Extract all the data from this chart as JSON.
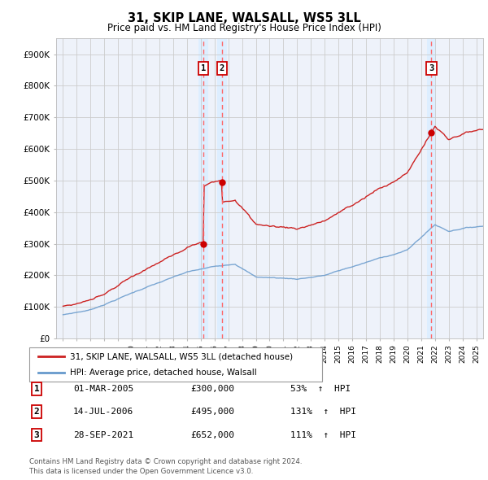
{
  "title": "31, SKIP LANE, WALSALL, WS5 3LL",
  "subtitle": "Price paid vs. HM Land Registry's House Price Index (HPI)",
  "legend_line1": "31, SKIP LANE, WALSALL, WS5 3LL (detached house)",
  "legend_line2": "HPI: Average price, detached house, Walsall",
  "footer1": "Contains HM Land Registry data © Crown copyright and database right 2024.",
  "footer2": "This data is licensed under the Open Government Licence v3.0.",
  "transactions": [
    {
      "num": 1,
      "date": "01-MAR-2005",
      "price": 300000,
      "pct": "53%",
      "dir": "↑"
    },
    {
      "num": 2,
      "date": "14-JUL-2006",
      "price": 495000,
      "pct": "131%",
      "dir": "↑"
    },
    {
      "num": 3,
      "date": "28-SEP-2021",
      "price": 652000,
      "pct": "111%",
      "dir": "↑"
    }
  ],
  "trans_dates_decimal": [
    2005.17,
    2006.54,
    2021.75
  ],
  "trans_prices": [
    300000,
    495000,
    652000
  ],
  "xlim_left": 1994.5,
  "xlim_right": 2025.5,
  "ylim_bottom": 0,
  "ylim_top": 950000,
  "yticks": [
    0,
    100000,
    200000,
    300000,
    400000,
    500000,
    600000,
    700000,
    800000,
    900000
  ],
  "ytick_labels": [
    "£0",
    "£100K",
    "£200K",
    "£300K",
    "£400K",
    "£500K",
    "£600K",
    "£700K",
    "£800K",
    "£900K"
  ],
  "hpi_color": "#6699cc",
  "price_color": "#cc2222",
  "dot_color": "#cc0000",
  "vline_color": "#ff6666",
  "shade_color": "#ddeeff",
  "grid_color": "#cccccc",
  "plot_bg_color": "#eef2fa"
}
